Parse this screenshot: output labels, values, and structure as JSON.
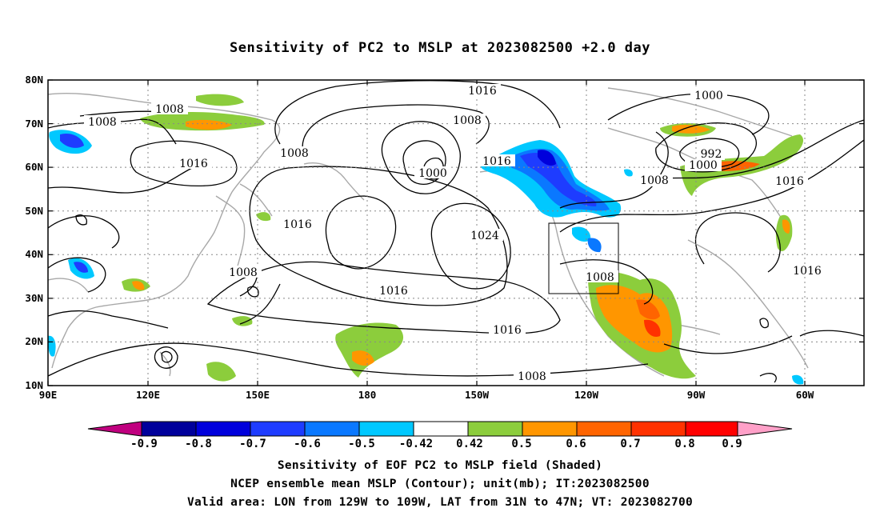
{
  "title": "Sensitivity of PC2 to MSLP at 2023082500 +2.0 day",
  "axes": {
    "lat_labels": [
      "80N",
      "70N",
      "60N",
      "50N",
      "40N",
      "30N",
      "20N",
      "10N"
    ],
    "lon_labels": [
      "90E",
      "120E",
      "150E",
      "180",
      "150W",
      "120W",
      "90W",
      "60W"
    ]
  },
  "colorbar": {
    "tick_labels": [
      "-0.9",
      "-0.8",
      "-0.7",
      "-0.6",
      "-0.5",
      "-0.42",
      "0.42",
      "0.5",
      "0.6",
      "0.7",
      "0.8",
      "0.9"
    ],
    "colors": [
      "#c0007f",
      "#00009b",
      "#0000dc",
      "#1e3cff",
      "#0a78ff",
      "#00c8ff",
      "#ffffff",
      "#8ccd3c",
      "#ff9600",
      "#ff6400",
      "#ff3200",
      "#ff0000",
      "#ffa0c8"
    ]
  },
  "contour_labels": [
    "1008",
    "1008",
    "1016",
    "1008",
    "1016",
    "1008",
    "1016",
    "1000",
    "1016",
    "1024",
    "1016",
    "1016",
    "1008",
    "1008",
    "1000",
    "992",
    "1000",
    "1008",
    "1016",
    "1016",
    "1008"
  ],
  "region_box": {
    "lon_from": "129W",
    "lon_to": "109W",
    "lat_from": "31N",
    "lat_to": "47N"
  },
  "captions": {
    "line1": "Sensitivity of EOF PC2 to MSLP field (Shaded)",
    "line2": "NCEP ensemble mean MSLP (Contour); unit(mb); IT:2023082500",
    "line3": "Valid area: LON from 129W to 109W, LAT from 31N to 47N; VT: 2023082700"
  }
}
